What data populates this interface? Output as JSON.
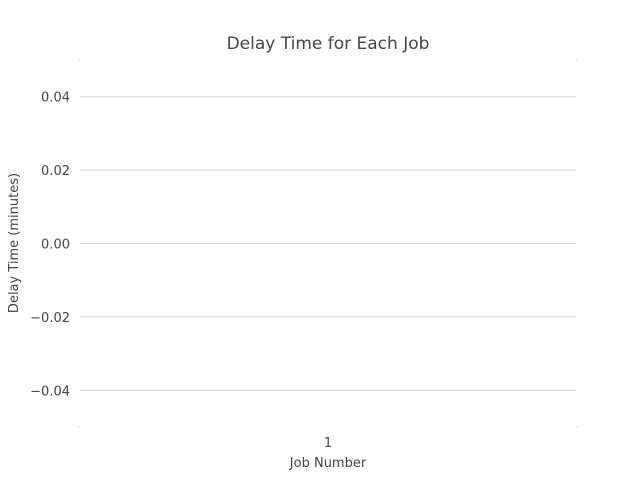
{
  "chart_data": {
    "type": "bar",
    "title": "Delay Time for Each Job",
    "xlabel": "Job Number",
    "ylabel": "Delay Time (minutes)",
    "categories": [
      "1"
    ],
    "values": [
      0
    ],
    "yticks": [
      "0.04",
      "0.02",
      "0.00",
      "−0.02",
      "−0.04"
    ],
    "ylim": [
      -0.05,
      0.05
    ],
    "grid": true,
    "legend": "none"
  }
}
